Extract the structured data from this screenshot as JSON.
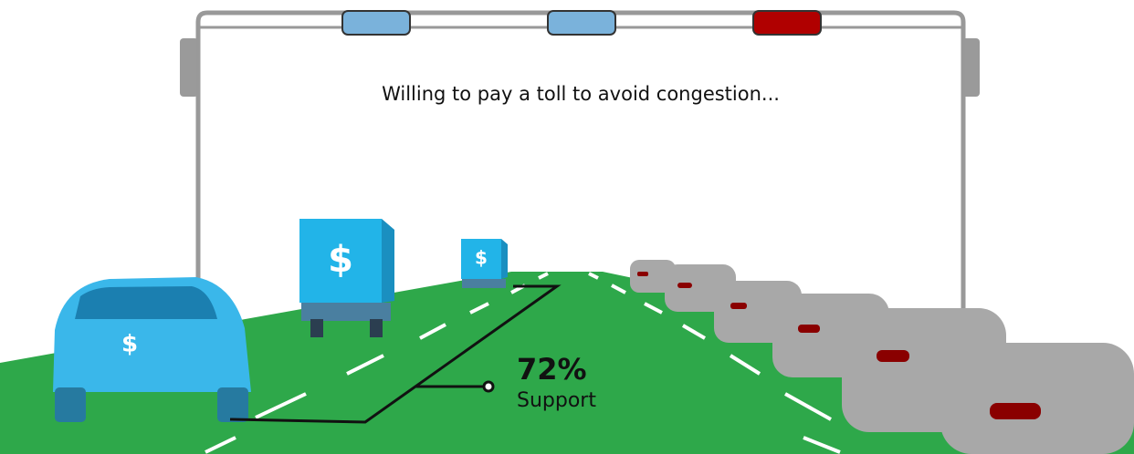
{
  "sign": {
    "text": "Willing to pay a toll to avoid congestion..."
  },
  "stat": {
    "value": "72%",
    "label": "Support"
  },
  "icon": {
    "dollar": "$"
  }
}
